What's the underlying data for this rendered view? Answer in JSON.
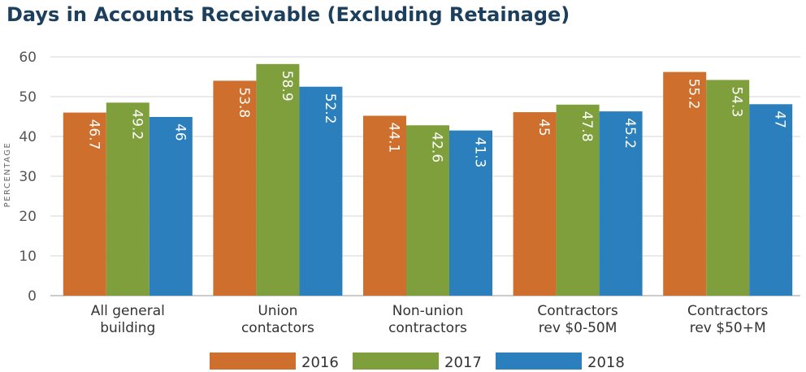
{
  "chart_data": {
    "type": "bar",
    "title": "Days in Accounts Receivable (Excluding Retainage)",
    "ylabel": "PERCENTAGE",
    "xlabel": "",
    "ylim": [
      0,
      60
    ],
    "yticks": [
      0,
      10,
      20,
      30,
      40,
      50,
      60
    ],
    "grid": true,
    "legend_position": "bottom",
    "categories": [
      [
        "All general",
        "building"
      ],
      [
        "Union",
        "contactors"
      ],
      [
        "Non-union",
        "contractors"
      ],
      [
        "Contractors",
        "rev $0-50M"
      ],
      [
        "Contractors",
        "rev $50+M"
      ]
    ],
    "series": [
      {
        "name": "2016",
        "color": "#cf6f2e",
        "values": [
          46.7,
          53.8,
          44.1,
          45,
          55.2
        ],
        "heights": [
          46,
          54,
          45.2,
          46.1,
          56.2
        ]
      },
      {
        "name": "2017",
        "color": "#7e9f3c",
        "values": [
          49.2,
          58.9,
          42.6,
          47.8,
          54.3
        ],
        "heights": [
          48.5,
          58.2,
          42.8,
          48,
          54.2
        ]
      },
      {
        "name": "2018",
        "color": "#2a7fbc",
        "values": [
          46,
          52.2,
          41.3,
          45.2,
          47
        ],
        "heights": [
          44.9,
          52.5,
          41.5,
          46.3,
          48.1
        ]
      }
    ]
  }
}
